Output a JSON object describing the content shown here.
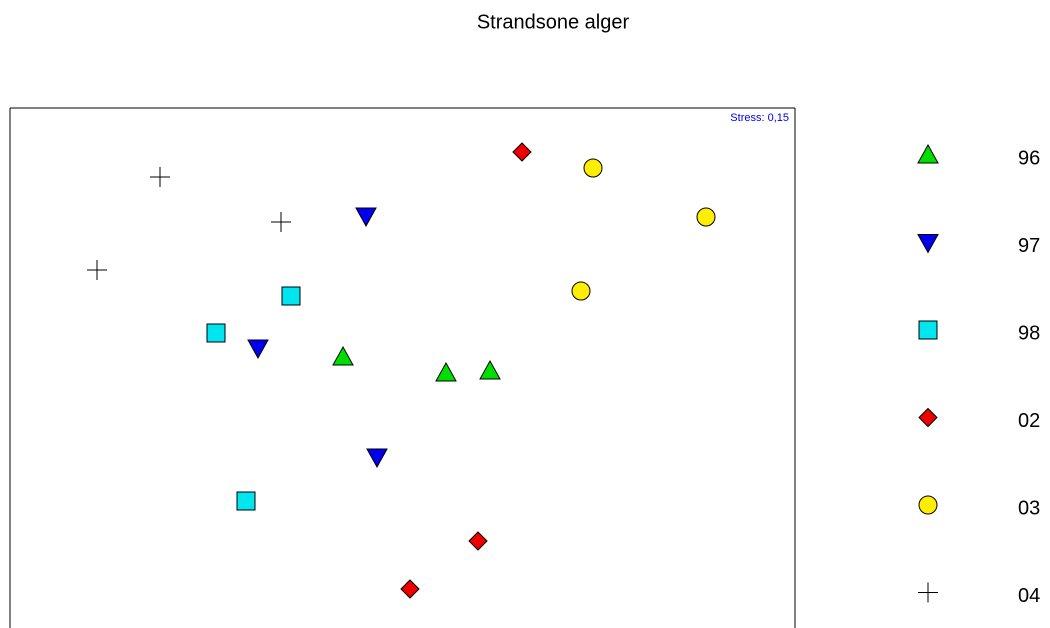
{
  "chart_data": {
    "type": "scatter",
    "title": "Strandsone alger",
    "annotation": "Stress: 0,15",
    "xlim": [
      0,
      785
    ],
    "ylim": [
      0,
      520
    ],
    "series": [
      {
        "name": "96",
        "color": "#00dd00",
        "marker": "triangle-up",
        "x": [
          333,
          436,
          480
        ],
        "values": [
          271,
          255,
          257
        ]
      },
      {
        "name": "97",
        "color": "#0000ee",
        "marker": "triangle-down",
        "x": [
          356,
          248,
          367
        ],
        "values": [
          412,
          280,
          171
        ]
      },
      {
        "name": "98",
        "color": "#00e5ee",
        "marker": "square",
        "x": [
          281,
          206,
          236
        ],
        "values": [
          332,
          295,
          127
        ]
      },
      {
        "name": "02",
        "color": "#ee0000",
        "marker": "diamond",
        "x": [
          512,
          468,
          400
        ],
        "values": [
          476,
          87,
          39
        ]
      },
      {
        "name": "03",
        "color": "#ffee00",
        "marker": "circle",
        "x": [
          583,
          696,
          571
        ],
        "values": [
          460,
          411,
          337
        ]
      },
      {
        "name": "04",
        "color": "#000000",
        "marker": "plus",
        "x": [
          150,
          271,
          87
        ],
        "values": [
          451,
          406,
          358
        ]
      }
    ]
  }
}
